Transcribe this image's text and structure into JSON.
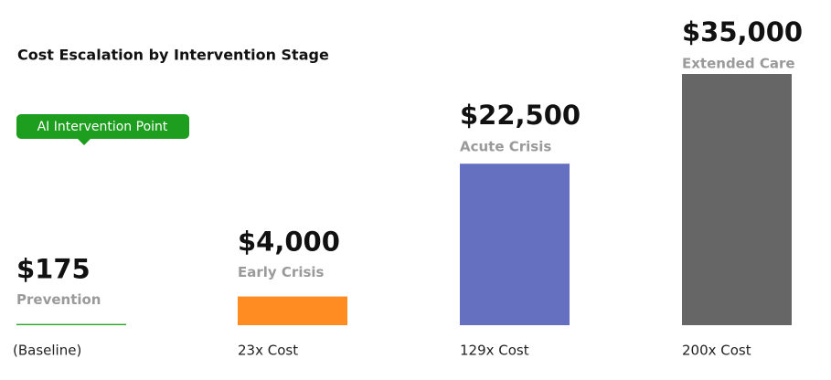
{
  "chart_data": {
    "type": "bar",
    "title": "Cost Escalation by Intervention Stage",
    "annotation": "AI Intervention Point",
    "categories": [
      "Prevention",
      "Early Crisis",
      "Acute Crisis",
      "Extended Care"
    ],
    "values": [
      175,
      4000,
      22500,
      35000
    ],
    "value_labels": [
      "$175",
      "$4,000",
      "$22,500",
      "$35,000"
    ],
    "notes": [
      "(Baseline)",
      "23x Cost",
      "129x Cost",
      "200x Cost"
    ],
    "colors": [
      "#2aa52a",
      "#ff8c22",
      "#6670c0",
      "#666666"
    ],
    "ylim": [
      0,
      35000
    ]
  }
}
